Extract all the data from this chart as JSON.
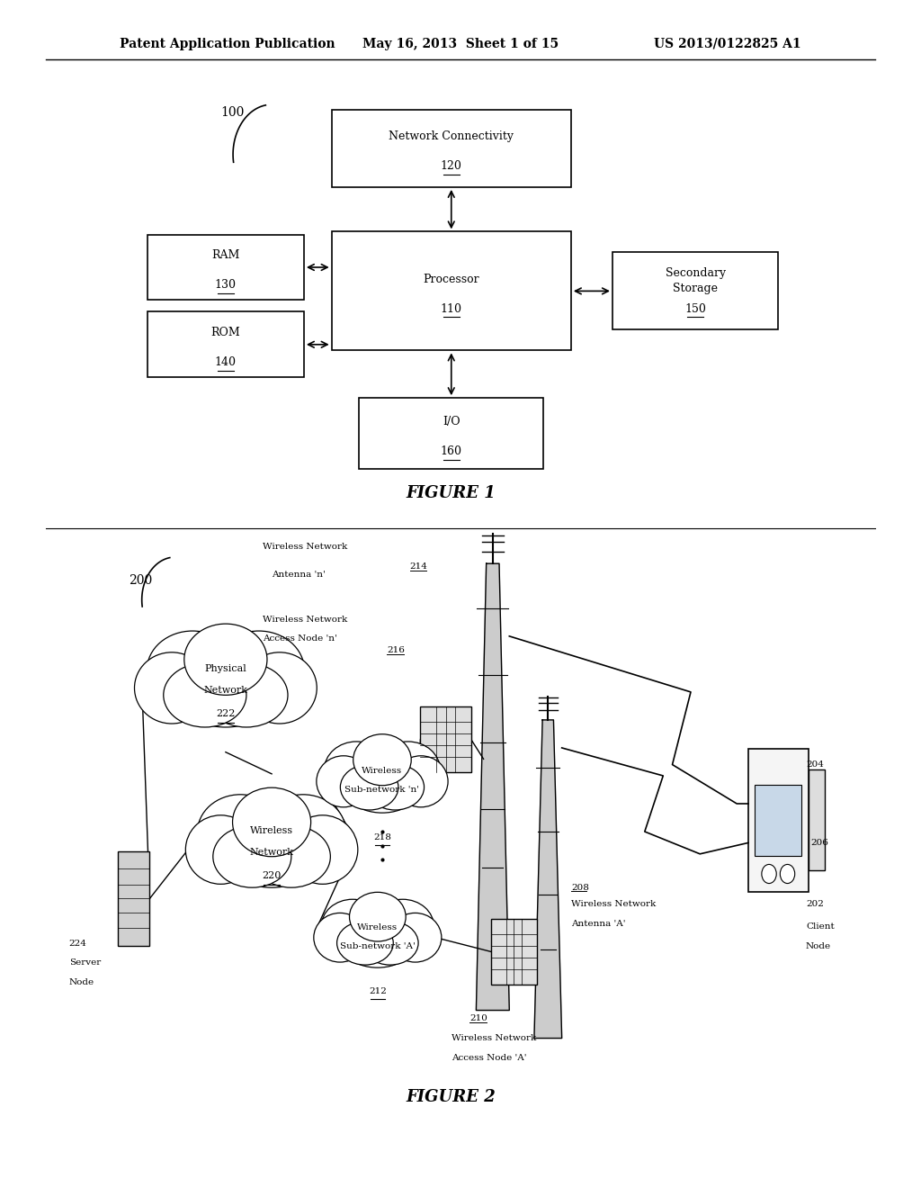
{
  "bg_color": "#ffffff",
  "header_text": "Patent Application Publication",
  "header_date": "May 16, 2013  Sheet 1 of 15",
  "header_patent": "US 2013/0122825 A1",
  "figure1_label": "FIGURE 1",
  "figure2_label": "FIGURE 2",
  "fig1_ref": "100",
  "fig2_ref": "200"
}
